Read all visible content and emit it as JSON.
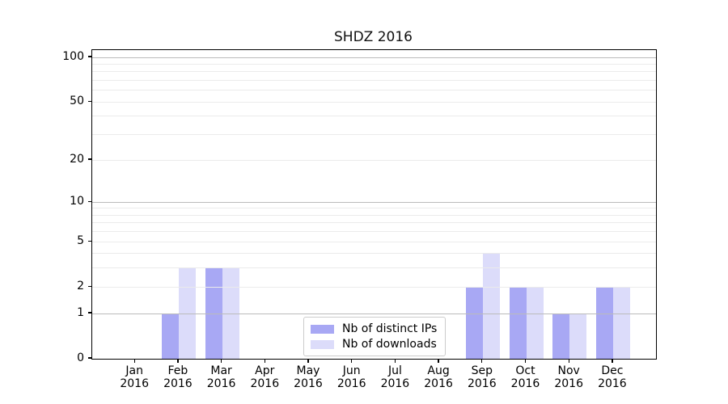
{
  "chart_data": {
    "type": "bar",
    "title": "SHDZ 2016",
    "categories": [
      "Jan 2016",
      "Feb 2016",
      "Mar 2016",
      "Apr 2016",
      "May 2016",
      "Jun 2016",
      "Jul 2016",
      "Aug 2016",
      "Sep 2016",
      "Oct 2016",
      "Nov 2016",
      "Dec 2016"
    ],
    "series": [
      {
        "name": "Nb of distinct IPs",
        "color": "#a8a8f4",
        "values": [
          0,
          1,
          3,
          0,
          0,
          0,
          0,
          0,
          2,
          2,
          1,
          2
        ]
      },
      {
        "name": "Nb of downloads",
        "color": "#dcdcfa",
        "values": [
          0,
          3,
          3,
          0,
          0,
          0,
          0,
          0,
          4,
          2,
          1,
          2
        ]
      }
    ],
    "xlabel": "",
    "ylabel": "",
    "yscale": "log1p",
    "ylim": [
      0,
      112
    ],
    "yticks": [
      0,
      1,
      2,
      5,
      10,
      20,
      50,
      100
    ],
    "grid": true,
    "grid_major_values": [
      1,
      10,
      100
    ],
    "grid_minor_values": [
      2,
      3,
      4,
      5,
      6,
      7,
      8,
      9,
      20,
      30,
      40,
      50,
      60,
      70,
      80,
      90
    ],
    "grid_on_top_of_bars": true,
    "legend_position": "lower center"
  },
  "colors": {
    "axis": "#000000",
    "grid_major": "#bbbbbb",
    "grid_minor": "#ebebeb",
    "legend_border": "#cccccc",
    "background": "#ffffff"
  }
}
